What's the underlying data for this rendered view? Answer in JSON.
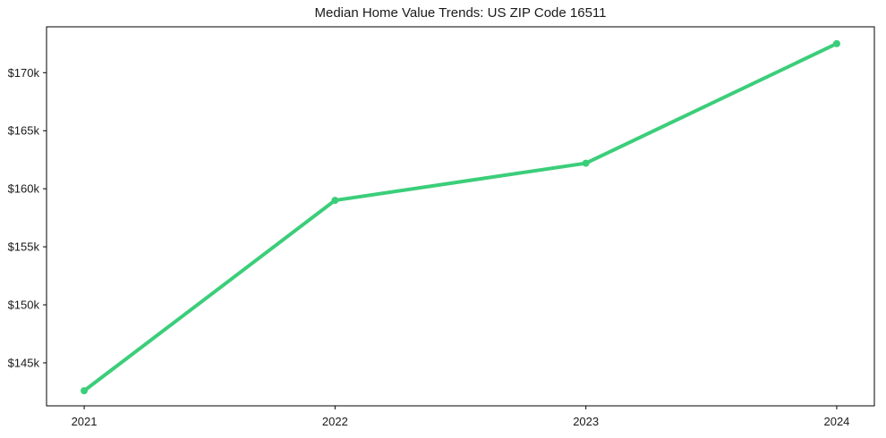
{
  "page": {
    "title": "Median Home Value Trends: US ZIP Code 16511"
  },
  "chart_data": {
    "type": "line",
    "title": "Median Home Value Trends: US ZIP Code 16511",
    "categories": [
      "2021",
      "2022",
      "2023",
      "2024"
    ],
    "x": [
      2021,
      2022,
      2023,
      2024
    ],
    "values": [
      142600,
      159000,
      162200,
      172500
    ],
    "xlabel": "",
    "ylabel": "",
    "xlim": [
      2020.85,
      2024.15
    ],
    "ylim": [
      141300,
      173950
    ],
    "xticks": [
      2021,
      2022,
      2023,
      2024
    ],
    "xtick_labels": [
      "2021",
      "2022",
      "2023",
      "2024"
    ],
    "yticks": [
      145000,
      150000,
      155000,
      160000,
      165000,
      170000
    ],
    "ytick_labels": [
      "$145k",
      "$150k",
      "$155k",
      "$160k",
      "$165k",
      "$170k"
    ],
    "grid": false,
    "legend": "none",
    "line_color": "#3bce7a",
    "marker": "circle",
    "axis_color": "#000000",
    "text_color": "#1a1a1a"
  }
}
